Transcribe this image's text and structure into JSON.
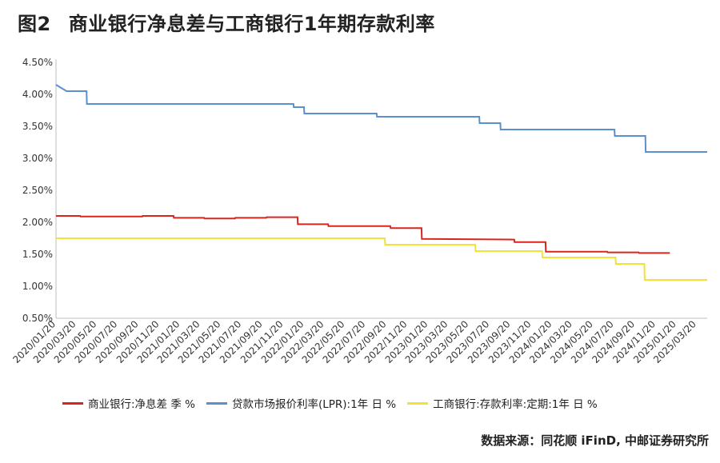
{
  "figure_label": "图2",
  "title": "商业银行净息差与工商银行1年期存款利率",
  "source": "数据来源：同花顺 iFinD, 中邮证券研究所",
  "chart_data": {
    "type": "line",
    "title": "商业银行净息差与工商银行1年期存款利率",
    "xlabel": "",
    "ylabel": "",
    "x_start": "2020/01/20",
    "x_end": "2025/04/20",
    "x_tick_labels": [
      "2020/01/20",
      "2020/03/20",
      "2020/05/20",
      "2020/07/20",
      "2020/09/20",
      "2020/11/20",
      "2021/01/20",
      "2021/03/20",
      "2021/05/20",
      "2021/07/20",
      "2021/09/20",
      "2021/11/20",
      "2022/01/20",
      "2022/03/20",
      "2022/05/20",
      "2022/07/20",
      "2022/09/20",
      "2022/11/20",
      "2023/01/20",
      "2023/03/20",
      "2023/05/20",
      "2023/07/20",
      "2023/09/20",
      "2023/11/20",
      "2024/01/20",
      "2024/03/20",
      "2024/05/20",
      "2024/07/20",
      "2024/09/20",
      "2024/11/20",
      "2025/01/20",
      "2025/03/20"
    ],
    "y_ticks": [
      "0.50%",
      "1.00%",
      "1.50%",
      "2.00%",
      "2.50%",
      "3.00%",
      "3.50%",
      "4.00%",
      "4.50%"
    ],
    "ylim": [
      0.5,
      4.5
    ],
    "grid": false,
    "legend_position": "bottom",
    "series": [
      {
        "name": "商业银行:净息差 季 %",
        "color": "#d7261e",
        "points": [
          [
            "2020/01/20",
            2.1
          ],
          [
            "2020/03/31",
            2.1
          ],
          [
            "2020/04/01",
            2.09
          ],
          [
            "2020/09/30",
            2.09
          ],
          [
            "2020/10/01",
            2.1
          ],
          [
            "2020/12/31",
            2.1
          ],
          [
            "2021/01/01",
            2.07
          ],
          [
            "2021/03/31",
            2.07
          ],
          [
            "2021/04/01",
            2.06
          ],
          [
            "2021/06/30",
            2.06
          ],
          [
            "2021/07/01",
            2.07
          ],
          [
            "2021/09/30",
            2.07
          ],
          [
            "2021/10/01",
            2.08
          ],
          [
            "2021/12/31",
            2.08
          ],
          [
            "2022/01/01",
            1.97
          ],
          [
            "2022/03/31",
            1.97
          ],
          [
            "2022/04/01",
            1.94
          ],
          [
            "2022/09/30",
            1.94
          ],
          [
            "2022/10/01",
            1.91
          ],
          [
            "2022/12/31",
            1.91
          ],
          [
            "2023/01/01",
            1.74
          ],
          [
            "2023/09/30",
            1.73
          ],
          [
            "2023/10/01",
            1.69
          ],
          [
            "2023/12/31",
            1.69
          ],
          [
            "2024/01/01",
            1.54
          ],
          [
            "2024/06/30",
            1.54
          ],
          [
            "2024/07/01",
            1.53
          ],
          [
            "2024/09/30",
            1.53
          ],
          [
            "2024/10/01",
            1.52
          ],
          [
            "2024/12/31",
            1.52
          ]
        ]
      },
      {
        "name": "贷款市场报价利率(LPR):1年 日 %",
        "color": "#5b8fd0",
        "points": [
          [
            "2020/01/20",
            4.15
          ],
          [
            "2020/02/20",
            4.05
          ],
          [
            "2020/04/19",
            4.05
          ],
          [
            "2020/04/20",
            3.85
          ],
          [
            "2021/12/19",
            3.85
          ],
          [
            "2021/12/20",
            3.8
          ],
          [
            "2022/01/19",
            3.8
          ],
          [
            "2022/01/20",
            3.7
          ],
          [
            "2022/08/21",
            3.7
          ],
          [
            "2022/08/22",
            3.65
          ],
          [
            "2023/06/19",
            3.65
          ],
          [
            "2023/06/20",
            3.55
          ],
          [
            "2023/08/20",
            3.55
          ],
          [
            "2023/08/21",
            3.45
          ],
          [
            "2024/07/21",
            3.45
          ],
          [
            "2024/07/22",
            3.35
          ],
          [
            "2024/10/20",
            3.35
          ],
          [
            "2024/10/21",
            3.1
          ],
          [
            "2025/04/20",
            3.1
          ]
        ]
      },
      {
        "name": "工商银行:存款利率:定期:1年 日 %",
        "color": "#f3e234",
        "points": [
          [
            "2020/01/20",
            1.75
          ],
          [
            "2022/09/14",
            1.75
          ],
          [
            "2022/09/15",
            1.65
          ],
          [
            "2023/06/07",
            1.65
          ],
          [
            "2023/06/08",
            1.55
          ],
          [
            "2023/12/21",
            1.55
          ],
          [
            "2023/12/22",
            1.45
          ],
          [
            "2024/07/24",
            1.45
          ],
          [
            "2024/07/25",
            1.35
          ],
          [
            "2024/10/17",
            1.35
          ],
          [
            "2024/10/18",
            1.1
          ],
          [
            "2025/04/20",
            1.1
          ]
        ]
      }
    ]
  }
}
